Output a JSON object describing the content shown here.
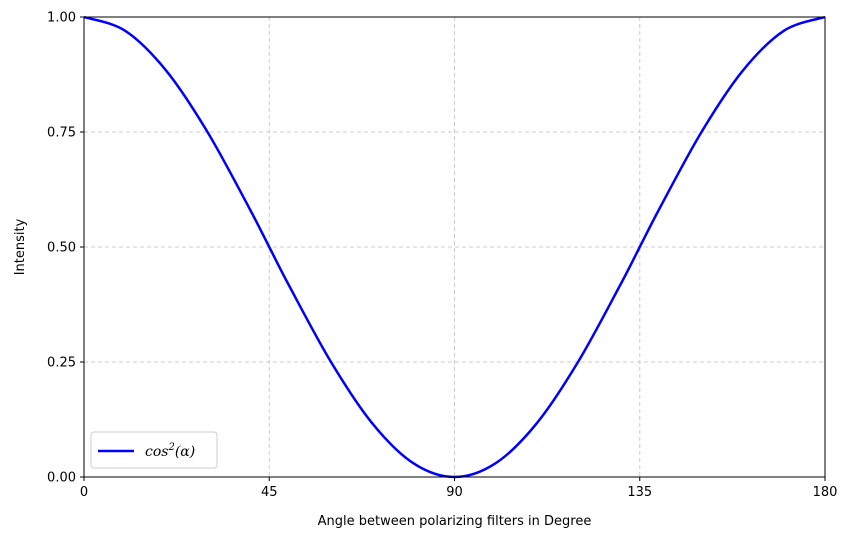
{
  "chart_data": {
    "type": "line",
    "title": "",
    "xlabel": "Angle between polarizing filters in Degree",
    "ylabel": "Intensity",
    "xlim": [
      0,
      180
    ],
    "ylim": [
      0,
      1
    ],
    "x_ticks": [
      0,
      45,
      90,
      135,
      180
    ],
    "x_tick_labels": [
      "0",
      "45",
      "90",
      "135",
      "180"
    ],
    "y_ticks": [
      0,
      0.25,
      0.5,
      0.75,
      1
    ],
    "y_tick_labels": [
      "0.00",
      "0.25",
      "0.50",
      "0.75",
      "1.00"
    ],
    "grid": true,
    "grid_style": "dashed",
    "legend_position": "lower-left",
    "series": [
      {
        "name": "cos²(α)",
        "legend_base": "cos",
        "legend_sup": "2",
        "legend_arg": "(α)",
        "color": "#0000ff",
        "x": [
          0,
          10,
          20,
          30,
          40,
          45,
          50,
          60,
          70,
          80,
          90,
          100,
          110,
          120,
          130,
          135,
          140,
          150,
          160,
          170,
          180
        ],
        "y": [
          1.0,
          0.97,
          0.883,
          0.75,
          0.587,
          0.5,
          0.413,
          0.25,
          0.117,
          0.03,
          0.0,
          0.03,
          0.117,
          0.25,
          0.413,
          0.5,
          0.587,
          0.75,
          0.883,
          0.97,
          1.0
        ]
      }
    ]
  }
}
